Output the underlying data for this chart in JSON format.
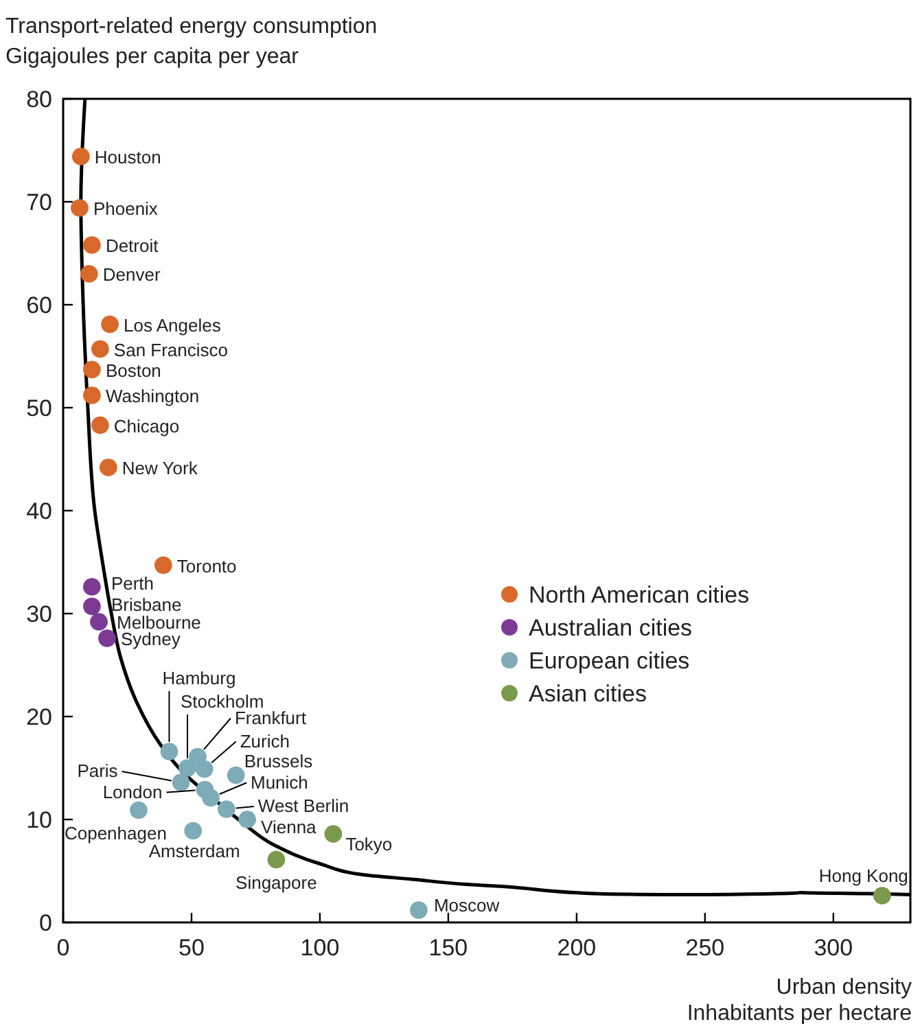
{
  "chart_data": {
    "type": "scatter",
    "ylabel": "Transport-related energy consumption\nGigajoules per capita per year",
    "xlabel": "Urban density\nInhabitants per hectare",
    "xlim": [
      0,
      330
    ],
    "ylim": [
      0,
      80
    ],
    "xticks": [
      0,
      50,
      100,
      150,
      200,
      250,
      300
    ],
    "yticks": [
      0,
      10,
      20,
      30,
      40,
      50,
      60,
      70,
      80
    ],
    "marker": "circle",
    "legend": "right",
    "grid": false,
    "series": [
      {
        "type": "line",
        "color": "#000000",
        "marker": "none",
        "x": [
          8.5,
          6.9,
          7.8,
          9.6,
          12.3,
          15,
          18.7,
          22.4,
          28.8,
          37.8,
          46.6,
          59.1,
          69.8,
          82.3,
          100,
          117.9,
          135.7,
          157,
          171,
          207,
          233.6,
          251,
          287,
          313.7,
          330
        ],
        "values": [
          80,
          70,
          60,
          50,
          40,
          35.5,
          30.1,
          25.7,
          21.3,
          17.3,
          14.6,
          11.9,
          9.7,
          7.5,
          5.7,
          4.6,
          4.2,
          3.7,
          3.5,
          2.8,
          2.7,
          2.7,
          2.9,
          2.8,
          2.7
        ]
      },
      {
        "name": "North American cities",
        "color": "#d9692a",
        "x": [
          6.9,
          6.4,
          11.2,
          10.1,
          18.2,
          14.4,
          11.2,
          11.2,
          14.4,
          17.6,
          39
        ],
        "values": [
          74.4,
          69.4,
          65.8,
          63,
          58.1,
          55.7,
          53.7,
          51.2,
          48.3,
          44.2,
          34.7
        ]
      },
      {
        "name": "Australian cities",
        "color": "#7d3a94",
        "x": [
          11.2,
          11.2,
          13.9,
          17.1
        ],
        "values": [
          32.6,
          30.7,
          29.2,
          27.6
        ]
      },
      {
        "name": "European cities",
        "color": "#7eabb8",
        "x": [
          41.3,
          48.4,
          52.4,
          55,
          67.3,
          45.9,
          55.2,
          57.5,
          63.6,
          71.7,
          29.4,
          50.6,
          138.5
        ],
        "values": [
          16.6,
          15,
          16.1,
          14.9,
          14.3,
          13.6,
          12.9,
          12.1,
          11,
          10,
          10.9,
          8.9,
          1.2
        ]
      },
      {
        "name": "Asian cities",
        "color": "#7b9a4c",
        "x": [
          105.2,
          83,
          319
        ],
        "values": [
          8.6,
          6.1,
          2.6
        ]
      }
    ],
    "annotations": [
      {
        "text": "Houston",
        "x": 6.9,
        "y": 74.4
      },
      {
        "text": "Phoenix",
        "x": 6.4,
        "y": 69.4
      },
      {
        "text": "Detroit",
        "x": 11.2,
        "y": 65.8
      },
      {
        "text": "Denver",
        "x": 10.1,
        "y": 63
      },
      {
        "text": "Los Angeles",
        "x": 18.2,
        "y": 58.1
      },
      {
        "text": "San Francisco",
        "x": 14.4,
        "y": 55.7
      },
      {
        "text": "Boston",
        "x": 11.2,
        "y": 53.7
      },
      {
        "text": "Washington",
        "x": 11.2,
        "y": 51.2
      },
      {
        "text": "Chicago",
        "x": 14.4,
        "y": 48.3
      },
      {
        "text": "New York",
        "x": 17.6,
        "y": 44.2
      },
      {
        "text": "Toronto",
        "x": 39,
        "y": 34.7
      },
      {
        "text": "Perth",
        "x": 11.2,
        "y": 32.6
      },
      {
        "text": "Brisbane",
        "x": 11.2,
        "y": 30.7
      },
      {
        "text": "Melbourne",
        "x": 13.9,
        "y": 29.2
      },
      {
        "text": "Sydney",
        "x": 17.1,
        "y": 27.6
      },
      {
        "text": "Hamburg",
        "x": 41.3,
        "y": 16.6
      },
      {
        "text": "Stockholm",
        "x": 48.4,
        "y": 15
      },
      {
        "text": "Frankfurt",
        "x": 52.4,
        "y": 16.1
      },
      {
        "text": "Zurich",
        "x": 55,
        "y": 14.9
      },
      {
        "text": "Brussels",
        "x": 67.3,
        "y": 14.3
      },
      {
        "text": "Paris",
        "x": 45.9,
        "y": 13.6
      },
      {
        "text": "London",
        "x": 55.2,
        "y": 12.9
      },
      {
        "text": "Munich",
        "x": 57.5,
        "y": 12.1
      },
      {
        "text": "West Berlin",
        "x": 63.6,
        "y": 11
      },
      {
        "text": "Vienna",
        "x": 71.7,
        "y": 10
      },
      {
        "text": "Copenhagen",
        "x": 29.4,
        "y": 10.9
      },
      {
        "text": "Amsterdam",
        "x": 50.6,
        "y": 8.9
      },
      {
        "text": "Moscow",
        "x": 138.5,
        "y": 1.2
      },
      {
        "text": "Tokyo",
        "x": 105.2,
        "y": 8.6
      },
      {
        "text": "Singapore",
        "x": 83,
        "y": 6.1
      },
      {
        "text": "Hong Kong",
        "x": 319,
        "y": 2.6
      }
    ]
  }
}
